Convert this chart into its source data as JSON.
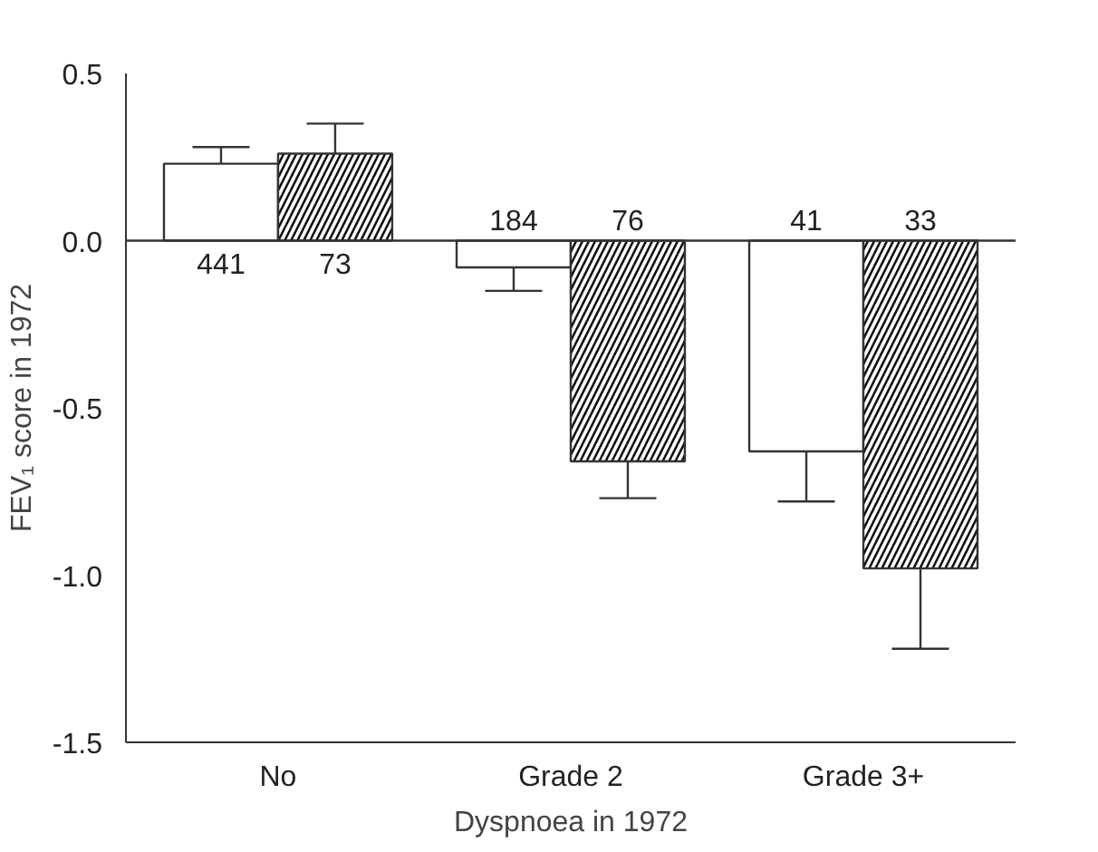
{
  "chart_data": {
    "type": "bar",
    "xlabel": "Dyspnoea in 1972",
    "ylabel": "FEV₁ score in 1972",
    "categories": [
      "No",
      "Grade 2",
      "Grade 3+"
    ],
    "series": [
      {
        "color": "#ffffff",
        "values": [
          0.23,
          -0.08,
          -0.63
        ],
        "errors": [
          [
            0.23,
            0.28
          ],
          [
            -0.15,
            -0.08
          ],
          [
            -0.78,
            -0.63
          ]
        ]
      },
      {
        "color": "#ffffff",
        "values": [
          0.26,
          -0.66,
          -0.98
        ],
        "errors": [
          [
            0.26,
            0.35
          ],
          [
            -0.77,
            -0.66
          ],
          [
            -1.22,
            -0.98
          ]
        ]
      }
    ],
    "annotations": [
      {
        "text": "441",
        "x": "No",
        "y": 0.0
      },
      {
        "text": "73",
        "x": "No",
        "y": 0.0
      },
      {
        "text": "184",
        "x": "Grade 2",
        "y": 0.0
      },
      {
        "text": "76",
        "x": "Grade 2",
        "y": 0.0
      },
      {
        "text": "41",
        "x": "Grade 3+",
        "y": 0.0
      },
      {
        "text": "33",
        "x": "Grade 3+",
        "y": 0.0
      }
    ],
    "ylim": [
      -1.5,
      0.5
    ],
    "yticks": [
      {
        "value": -1.5,
        "label": "-1.5"
      },
      {
        "value": -1.0,
        "label": "-1.0"
      },
      {
        "value": -0.5,
        "label": "-0.5"
      },
      {
        "value": 0.0,
        "label": "0.0"
      },
      {
        "value": 0.5,
        "label": "0.5"
      }
    ]
  }
}
